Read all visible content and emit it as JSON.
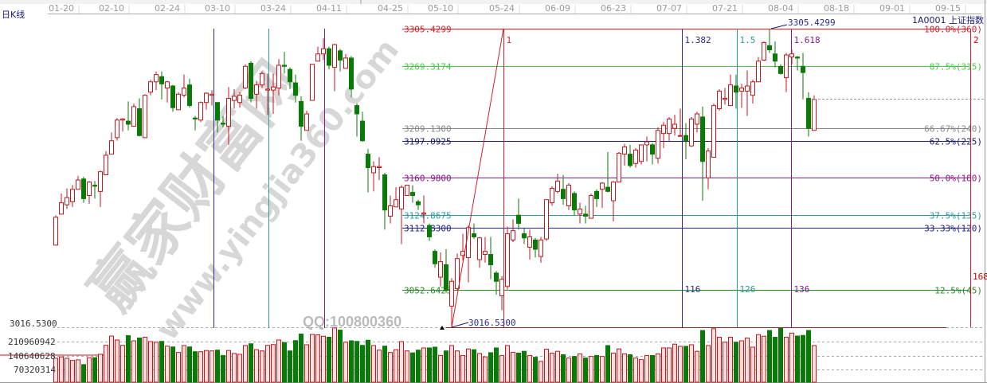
{
  "header": {
    "period_label": "日K线",
    "symbol_label": "1A0001 上证指数"
  },
  "watermark": {
    "site_cn": "赢家财富网",
    "site_url": "www.yingjia360.com",
    "qq": "QQ:100800360"
  },
  "colors": {
    "up": "#c8161d",
    "down": "#087a08",
    "up_volume_fill": "#ffdede",
    "background": "#ffffff",
    "label_navy": "#1a1a80"
  },
  "chart_data": {
    "type": "candlestick",
    "x_tick_labels": [
      "01-20",
      "02-10",
      "02-24",
      "03-10",
      "03-24",
      "04-11",
      "04-25",
      "05-10",
      "05-24",
      "06-09",
      "06-23",
      "07-07",
      "07-21",
      "08-04",
      "08-18",
      "09-01",
      "09-15"
    ],
    "price_range": [
      3016.53,
      3305.4299
    ],
    "candles_ohlc": [
      [
        3096,
        3125,
        3096,
        3123
      ],
      [
        3126,
        3146,
        3126,
        3137
      ],
      [
        3135,
        3151,
        3131,
        3142
      ],
      [
        3138,
        3154,
        3133,
        3150
      ],
      [
        3150,
        3163,
        3150,
        3159
      ],
      [
        3160,
        3162,
        3137,
        3141
      ],
      [
        3144,
        3158,
        3136,
        3157
      ],
      [
        3154,
        3158,
        3141,
        3153
      ],
      [
        3148,
        3168,
        3133,
        3167
      ],
      [
        3164,
        3187,
        3164,
        3183
      ],
      [
        3184,
        3205,
        3184,
        3197
      ],
      [
        3200,
        3219,
        3197,
        3217
      ],
      [
        3217,
        3219,
        3206,
        3218
      ],
      [
        3216,
        3235,
        3207,
        3213
      ],
      [
        3211,
        3233,
        3211,
        3230
      ],
      [
        3228,
        3238,
        3201,
        3202
      ],
      [
        3200,
        3242,
        3200,
        3241
      ],
      [
        3244,
        3256,
        3241,
        3254
      ],
      [
        3254,
        3264,
        3246,
        3261
      ],
      [
        3259,
        3264,
        3237,
        3252
      ],
      [
        3248,
        3255,
        3234,
        3254
      ],
      [
        3250,
        3251,
        3225,
        3229
      ],
      [
        3227,
        3244,
        3227,
        3242
      ],
      [
        3241,
        3261,
        3239,
        3248
      ],
      [
        3251,
        3257,
        3229,
        3231
      ],
      [
        3219,
        3221,
        3207,
        3218
      ],
      [
        3217,
        3235,
        3215,
        3234
      ],
      [
        3234,
        3244,
        3227,
        3243
      ],
      [
        3241,
        3246,
        3231,
        3242
      ],
      [
        3234,
        3234,
        3205,
        3217
      ],
      [
        3214,
        3221,
        3210,
        3213
      ],
      [
        3211,
        3249,
        3193,
        3238
      ],
      [
        3236,
        3247,
        3228,
        3240
      ],
      [
        3234,
        3244,
        3229,
        3241
      ],
      [
        3248,
        3271,
        3247,
        3269
      ],
      [
        3272,
        3274,
        3234,
        3238
      ],
      [
        3242,
        3255,
        3228,
        3251
      ],
      [
        3251,
        3264,
        3248,
        3262
      ],
      [
        3246,
        3262,
        3222,
        3247
      ],
      [
        3246,
        3262,
        3223,
        3249
      ],
      [
        3248,
        3276,
        3241,
        3270
      ],
      [
        3270,
        3283,
        3262,
        3269
      ],
      [
        3266,
        3268,
        3247,
        3254
      ],
      [
        3253,
        3261,
        3234,
        3241
      ],
      [
        3235,
        3240,
        3197,
        3211
      ],
      [
        3207,
        3226,
        3207,
        3223
      ],
      [
        3236,
        3271,
        3236,
        3271
      ],
      [
        3274,
        3288,
        3274,
        3281
      ],
      [
        3281,
        3296,
        3275,
        3286
      ],
      [
        3286,
        3288,
        3266,
        3270
      ],
      [
        3268,
        3291,
        3245,
        3290
      ],
      [
        3284,
        3286,
        3264,
        3275
      ],
      [
        3267,
        3281,
        3267,
        3277
      ],
      [
        3277,
        3279,
        3239,
        3247
      ],
      [
        3231,
        3233,
        3201,
        3223
      ],
      [
        3216,
        3225,
        3196,
        3197
      ],
      [
        3184,
        3189,
        3147,
        3171
      ],
      [
        3166,
        3177,
        3148,
        3172
      ],
      [
        3171,
        3181,
        3159,
        3172
      ],
      [
        3164,
        3166,
        3111,
        3130
      ],
      [
        3124,
        3144,
        3117,
        3134
      ],
      [
        3133,
        3152,
        3133,
        3140
      ],
      [
        3131,
        3154,
        3097,
        3152
      ],
      [
        3144,
        3154,
        3144,
        3154
      ],
      [
        3147,
        3154,
        3137,
        3144
      ],
      [
        3138,
        3140,
        3130,
        3135
      ],
      [
        3126,
        3144,
        3117,
        3127
      ],
      [
        3115,
        3117,
        3100,
        3104
      ],
      [
        3090,
        3092,
        3074,
        3078
      ],
      [
        3065,
        3089,
        3056,
        3080
      ],
      [
        3077,
        3092,
        3050,
        3052
      ],
      [
        3037,
        3064,
        3017,
        3061
      ],
      [
        3054,
        3088,
        3052,
        3083
      ],
      [
        3086,
        3107,
        3081,
        3090
      ],
      [
        3084,
        3115,
        3060,
        3113
      ],
      [
        3107,
        3117,
        3102,
        3104
      ],
      [
        3082,
        3104,
        3074,
        3103
      ],
      [
        3087,
        3104,
        3079,
        3090
      ],
      [
        3087,
        3104,
        3063,
        3077
      ],
      [
        3069,
        3071,
        3048,
        3061
      ],
      [
        3047,
        3066,
        3033,
        3063
      ],
      [
        3056,
        3114,
        3053,
        3107
      ],
      [
        3101,
        3121,
        3099,
        3110
      ],
      [
        3125,
        3141,
        3111,
        3117
      ],
      [
        3107,
        3113,
        3097,
        3103
      ],
      [
        3094,
        3111,
        3082,
        3104
      ],
      [
        3101,
        3103,
        3084,
        3092
      ],
      [
        3085,
        3104,
        3079,
        3101
      ],
      [
        3102,
        3140,
        3100,
        3140
      ],
      [
        3137,
        3153,
        3134,
        3151
      ],
      [
        3148,
        3165,
        3146,
        3158
      ],
      [
        3150,
        3164,
        3135,
        3141
      ],
      [
        3134,
        3156,
        3130,
        3154
      ],
      [
        3146,
        3148,
        3125,
        3130
      ],
      [
        3126,
        3137,
        3117,
        3131
      ],
      [
        3126,
        3134,
        3117,
        3124
      ],
      [
        3122,
        3146,
        3122,
        3144
      ],
      [
        3148,
        3150,
        3133,
        3141
      ],
      [
        3150,
        3157,
        3132,
        3156
      ],
      [
        3152,
        3186,
        3147,
        3148
      ],
      [
        3139,
        3158,
        3119,
        3157
      ],
      [
        3157,
        3186,
        3157,
        3185
      ],
      [
        3184,
        3194,
        3173,
        3191
      ],
      [
        3184,
        3193,
        3171,
        3173
      ],
      [
        3175,
        3190,
        3171,
        3188
      ],
      [
        3177,
        3193,
        3174,
        3193
      ],
      [
        3193,
        3201,
        3177,
        3196
      ],
      [
        3193,
        3195,
        3174,
        3184
      ],
      [
        3180,
        3210,
        3175,
        3207
      ],
      [
        3204,
        3215,
        3190,
        3212
      ],
      [
        3204,
        3220,
        3196,
        3218
      ],
      [
        3209,
        3222,
        3202,
        3213
      ],
      [
        3202,
        3228,
        3201,
        3202
      ],
      [
        3202,
        3214,
        3179,
        3197
      ],
      [
        3192,
        3220,
        3191,
        3218
      ],
      [
        3213,
        3225,
        3205,
        3223
      ],
      [
        3220,
        3230,
        3139,
        3177
      ],
      [
        3161,
        3190,
        3150,
        3187
      ],
      [
        3181,
        3233,
        3181,
        3231
      ],
      [
        3228,
        3247,
        3226,
        3245
      ],
      [
        3237,
        3248,
        3232,
        3238
      ],
      [
        3231,
        3261,
        3231,
        3251
      ],
      [
        3250,
        3261,
        3228,
        3244
      ],
      [
        3245,
        3252,
        3229,
        3248
      ],
      [
        3245,
        3265,
        3221,
        3250
      ],
      [
        3241,
        3256,
        3233,
        3254
      ],
      [
        3254,
        3278,
        3254,
        3274
      ],
      [
        3275,
        3293,
        3274,
        3292
      ],
      [
        3289,
        3305,
        3282,
        3285
      ],
      [
        3281,
        3293,
        3268,
        3274
      ],
      [
        3269,
        3271,
        3261,
        3262
      ],
      [
        3258,
        3282,
        3244,
        3280
      ],
      [
        3278,
        3285,
        3271,
        3281
      ],
      [
        3278,
        3279,
        3265,
        3277
      ],
      [
        3269,
        3282,
        3237,
        3263
      ],
      [
        3238,
        3244,
        3201,
        3209
      ],
      [
        3207,
        3241,
        3207,
        3237
      ]
    ],
    "volume_millions": [
      127,
      134,
      127,
      116,
      119,
      95,
      130,
      130,
      147,
      192,
      239,
      219,
      192,
      241,
      215,
      229,
      233,
      211,
      208,
      212,
      188,
      184,
      156,
      191,
      184,
      160,
      160,
      166,
      164,
      168,
      141,
      166,
      151,
      147,
      191,
      200,
      170,
      164,
      192,
      196,
      219,
      206,
      164,
      216,
      249,
      195,
      247,
      245,
      238,
      233,
      280,
      269,
      208,
      215,
      212,
      192,
      218,
      191,
      168,
      188,
      156,
      170,
      211,
      164,
      154,
      168,
      179,
      179,
      183,
      141,
      164,
      191,
      164,
      141,
      174,
      170,
      151,
      134,
      155,
      179,
      141,
      191,
      157,
      153,
      162,
      141,
      132,
      111,
      173,
      153,
      162,
      145,
      128,
      136,
      149,
      128,
      136,
      141,
      136,
      191,
      153,
      174,
      149,
      145,
      128,
      120,
      141,
      141,
      149,
      179,
      179,
      198,
      187,
      187,
      195,
      162,
      267,
      191,
      276,
      233,
      208,
      233,
      208,
      215,
      229,
      183,
      246,
      238,
      267,
      233,
      281,
      233,
      254,
      239,
      242,
      267,
      191
    ],
    "volume_axis_labels": [
      "210960942",
      "140640628",
      "70320314"
    ],
    "price_axis_label": "3016.5300",
    "fibonacci_levels": [
      {
        "price_label": "3305.4299",
        "pct_label": "100.0%(360)",
        "price": 3305.4299,
        "color": "#d0202a"
      },
      {
        "price_label": "3269.3174",
        "pct_label": "87.5%(315)",
        "price": 3269.3174,
        "color": "#44cc44"
      },
      {
        "price_label": "3209.1300",
        "pct_label": "66.67%(240)",
        "price": 3209.13,
        "color": "#888888"
      },
      {
        "price_label": "3197.0925",
        "pct_label": "62.5%(225)",
        "price": 3197.0925,
        "color": "#1a1a70"
      },
      {
        "price_label": "3160.9800",
        "pct_label": "50.0%(180)",
        "price": 3160.98,
        "color": "#8a1a8a"
      },
      {
        "price_label": "3124.8675",
        "pct_label": "37.5%(135)",
        "price": 3124.8675,
        "color": "#2a9a9a"
      },
      {
        "price_label": "3112.8300",
        "pct_label": "33.33%(120)",
        "price": 3112.83,
        "color": "#22228a"
      },
      {
        "price_label": "3052.6425",
        "pct_label": "12.5%(45)",
        "price": 3052.6425,
        "color": "#2a8a2a"
      }
    ],
    "time_lines": [
      {
        "top_label": "",
        "bottom_label": "",
        "color": "#2a2a90"
      },
      {
        "top_label": "",
        "bottom_label": "",
        "color": "#2a9a9a"
      },
      {
        "top_label": "",
        "bottom_label": "",
        "color": "#8a1a8a"
      },
      {
        "top_label": "1",
        "bottom_label": "",
        "color": "#d0202a"
      },
      {
        "top_label": "1.382",
        "bottom_label": "116",
        "color": "#2a2a90"
      },
      {
        "top_label": "1.5",
        "bottom_label": "126",
        "color": "#2a9a9a"
      },
      {
        "top_label": "1.618",
        "bottom_label": "136",
        "color": "#8a1a8a"
      }
    ],
    "high_annotation": "3305.4299",
    "low_annotation": "3016.5300",
    "right_markers": {
      "top": "2",
      "bottom": "168"
    }
  }
}
